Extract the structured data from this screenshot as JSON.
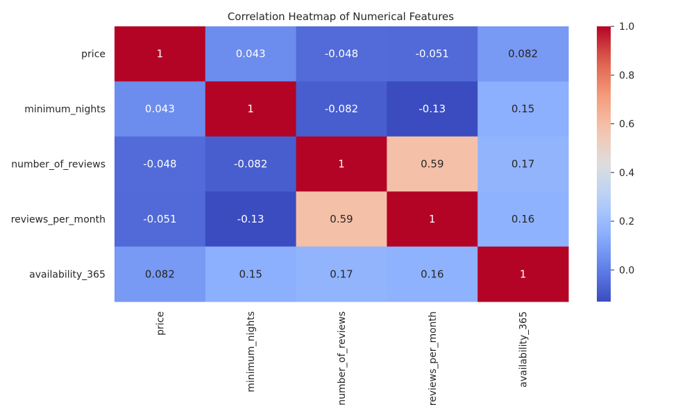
{
  "chart_data": {
    "type": "heatmap",
    "title": "Correlation Heatmap of Numerical Features",
    "x_categories": [
      "price",
      "minimum_nights",
      "number_of_reviews",
      "reviews_per_month",
      "availability_365"
    ],
    "y_categories": [
      "price",
      "minimum_nights",
      "number_of_reviews",
      "reviews_per_month",
      "availability_365"
    ],
    "values": [
      [
        1,
        0.043,
        -0.048,
        -0.051,
        0.082
      ],
      [
        0.043,
        1,
        -0.082,
        -0.13,
        0.15
      ],
      [
        -0.048,
        -0.082,
        1,
        0.59,
        0.17
      ],
      [
        -0.051,
        -0.13,
        0.59,
        1,
        0.16
      ],
      [
        0.082,
        0.15,
        0.17,
        0.16,
        1
      ]
    ],
    "annotations": [
      [
        "1",
        "0.043",
        "-0.048",
        "-0.051",
        "0.082"
      ],
      [
        "0.043",
        "1",
        "-0.082",
        "-0.13",
        "0.15"
      ],
      [
        "-0.048",
        "-0.082",
        "1",
        "0.59",
        "0.17"
      ],
      [
        "-0.051",
        "-0.13",
        "0.59",
        "1",
        "0.16"
      ],
      [
        "0.082",
        "0.15",
        "0.17",
        "0.16",
        "1"
      ]
    ],
    "colormap": "coolwarm",
    "color_range": [
      -0.13,
      1.0
    ],
    "colorbar": {
      "ticks": [
        0.0,
        0.2,
        0.4,
        0.6,
        0.8,
        1.0
      ],
      "tick_labels": [
        "0.0",
        "0.2",
        "0.4",
        "0.6",
        "0.8",
        "1.0"
      ],
      "placement": "right"
    },
    "grid": false
  }
}
